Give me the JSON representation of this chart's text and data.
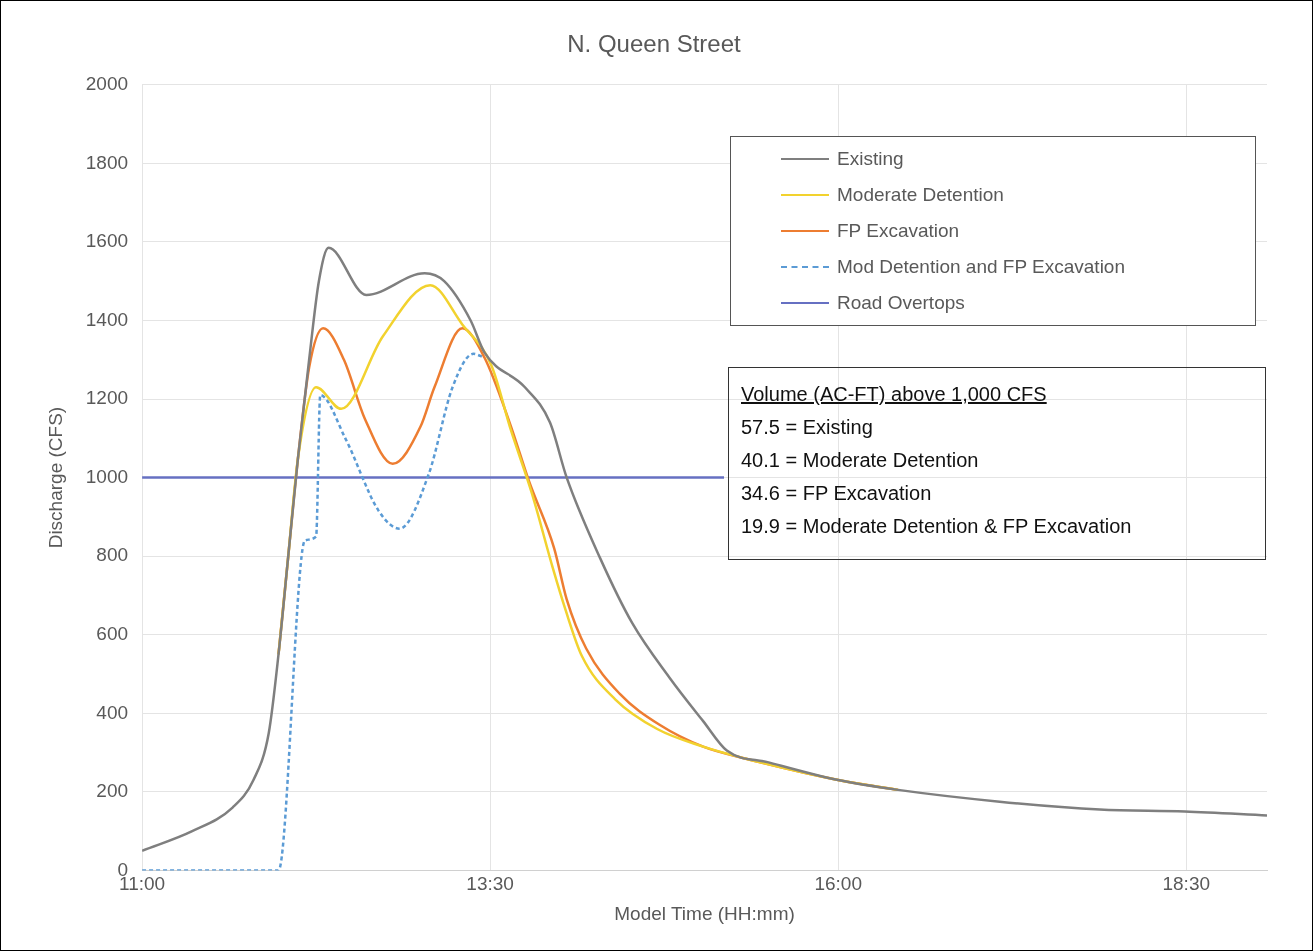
{
  "chart_data": {
    "type": "line",
    "title": "N. Queen Street",
    "xlabel": "Model Time (HH:mm)",
    "ylabel": "Discharge (CFS)",
    "xlim": [
      11,
      19.08
    ],
    "xticks": [
      {
        "value": 11,
        "label": "11:00"
      },
      {
        "value": 13.5,
        "label": "13:30"
      },
      {
        "value": 16,
        "label": "16:00"
      },
      {
        "value": 18.5,
        "label": "18:30"
      }
    ],
    "ylim": [
      0,
      2000
    ],
    "yticks": [
      0,
      200,
      400,
      600,
      800,
      1000,
      1200,
      1400,
      1600,
      1800,
      2000
    ],
    "grid": true,
    "legend": "top right",
    "marker": "none",
    "series": [
      {
        "name": "Existing",
        "color": "#7f7f7f",
        "x": [
          11,
          11.36,
          11.65,
          11.8,
          11.91,
          11.98,
          12.05,
          12.12,
          12.2,
          12.27,
          12.34,
          12.61,
          13.03,
          13.17,
          13.36,
          13.46,
          13.75,
          13.93,
          14.05,
          14.29,
          14.52,
          14.79,
          15.03,
          15.2,
          15.5,
          16,
          16.43,
          17.16,
          17.88,
          18.49,
          19.08
        ],
        "values": [
          50,
          100,
          160,
          230,
          350,
          550,
          800,
          1050,
          1300,
          1500,
          1585,
          1465,
          1520,
          1500,
          1400,
          1318,
          1230,
          1140,
          1000,
          795,
          630,
          490,
          380,
          305,
          275,
          230,
          205,
          175,
          155,
          150,
          140
        ]
      },
      {
        "name": "Moderate Detention",
        "color": "#f2d22e",
        "x": [
          11.98,
          12.05,
          12.12,
          12.25,
          12.43,
          12.73,
          13.07,
          13.3,
          13.51,
          13.65,
          13.8,
          13.95,
          14.04,
          14.16,
          14.4,
          14.7,
          15.03,
          15.33,
          16,
          16.43
        ],
        "values": [
          550,
          800,
          1050,
          1230,
          1175,
          1360,
          1490,
          1390,
          1285,
          1120,
          960,
          770,
          665,
          545,
          435,
          360,
          315,
          285,
          230,
          205
        ]
      },
      {
        "name": "FP Excavation",
        "color": "#ed7d31",
        "x": [
          11.98,
          12.05,
          12.12,
          12.2,
          12.3,
          12.45,
          12.6,
          12.8,
          13,
          13.1,
          13.3,
          13.46,
          13.64,
          13.78,
          13.96,
          14.05,
          14.19,
          14.43,
          14.72,
          15.03,
          15.33,
          16,
          16.43
        ],
        "values": [
          550,
          800,
          1050,
          1280,
          1380,
          1300,
          1150,
          1035,
          1130,
          1230,
          1380,
          1305,
          1140,
          990,
          820,
          690,
          565,
          450,
          370,
          315,
          285,
          230,
          205
        ]
      },
      {
        "name": "Mod Detention and FP Excavation",
        "color": "#5b9bd5",
        "line_style": "dashed",
        "x": [
          11,
          11.98,
          12.17,
          12.25,
          12.28,
          12.46,
          12.7,
          12.85,
          13.06,
          13.23,
          13.38,
          13.46
        ],
        "values": [
          0,
          0,
          840,
          850,
          1210,
          1100,
          915,
          870,
          1010,
          1230,
          1315,
          1305
        ]
      },
      {
        "name": "Road Overtops",
        "color": "#6670c2",
        "x": [
          11,
          15.18
        ],
        "values": [
          1000,
          1000
        ]
      }
    ],
    "annotations": [
      "Volume (AC-FT) above 1,000 CFS",
      "57.5 = Existing",
      "40.1 = Moderate Detention",
      "34.6 = FP Excavation",
      "19.9 = Moderate Detention & FP Excavation"
    ]
  }
}
